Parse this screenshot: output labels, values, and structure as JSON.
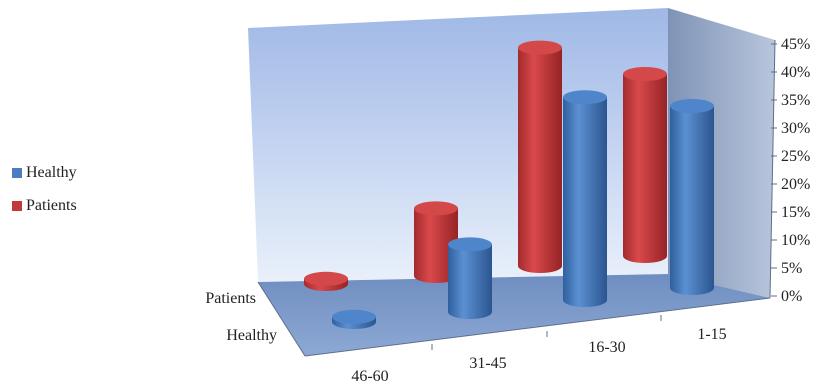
{
  "chart_data": {
    "type": "bar",
    "style": "3d-cylinder",
    "categories": [
      "46-60",
      "31-45",
      "16-30",
      "1-15"
    ],
    "series": [
      {
        "name": "Healthy",
        "values": [
          1,
          13,
          39,
          35
        ],
        "color": "#4a7ec0"
      },
      {
        "name": "Patients",
        "values": [
          1,
          13,
          42,
          35
        ],
        "color": "#c0393b"
      }
    ],
    "yticks": [
      "0%",
      "5%",
      "10%",
      "15%",
      "20%",
      "25%",
      "30%",
      "35%",
      "40%",
      "45%"
    ],
    "ylim": [
      0,
      45
    ],
    "grid": false,
    "legend_position": "left"
  },
  "legend": [
    {
      "label": "Healthy",
      "color": "#4a7ec0"
    },
    {
      "label": "Patients",
      "color": "#c0393b"
    }
  ]
}
